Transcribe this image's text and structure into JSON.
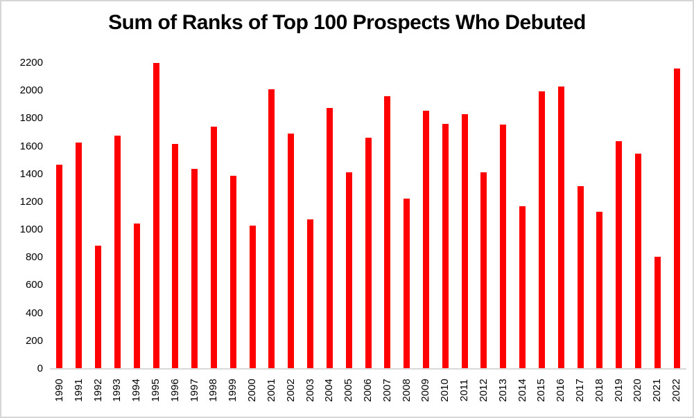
{
  "chart_data": {
    "type": "bar",
    "title": "Sum of Ranks of Top 100 Prospects Who Debuted",
    "categories": [
      "1990",
      "1991",
      "1992",
      "1993",
      "1994",
      "1995",
      "1996",
      "1997",
      "1998",
      "1999",
      "2000",
      "2001",
      "2002",
      "2003",
      "2004",
      "2005",
      "2006",
      "2007",
      "2008",
      "2009",
      "2010",
      "2011",
      "2012",
      "2013",
      "2014",
      "2015",
      "2016",
      "2017",
      "2018",
      "2019",
      "2020",
      "2021",
      "2022"
    ],
    "values": [
      1470,
      1630,
      885,
      1675,
      1045,
      2200,
      1620,
      1440,
      1740,
      1390,
      1030,
      2010,
      1690,
      1075,
      1875,
      1415,
      1660,
      1960,
      1225,
      1855,
      1760,
      1830,
      1415,
      1755,
      1170,
      1995,
      2030,
      1315,
      1130,
      1640,
      1550,
      805,
      2160
    ],
    "xlabel": "",
    "ylabel": "",
    "ylim": [
      0,
      2200
    ],
    "ytick_step": 200,
    "yticks": [
      "0",
      "200",
      "400",
      "600",
      "800",
      "1000",
      "1200",
      "1400",
      "1600",
      "1800",
      "2000",
      "2200"
    ],
    "grid": "off",
    "legend": "none",
    "bar_color": "#ff0000",
    "axis_line_color": "#d9d9d9",
    "text_color": "#000000",
    "frame_border_color": "#d6d6d6"
  }
}
